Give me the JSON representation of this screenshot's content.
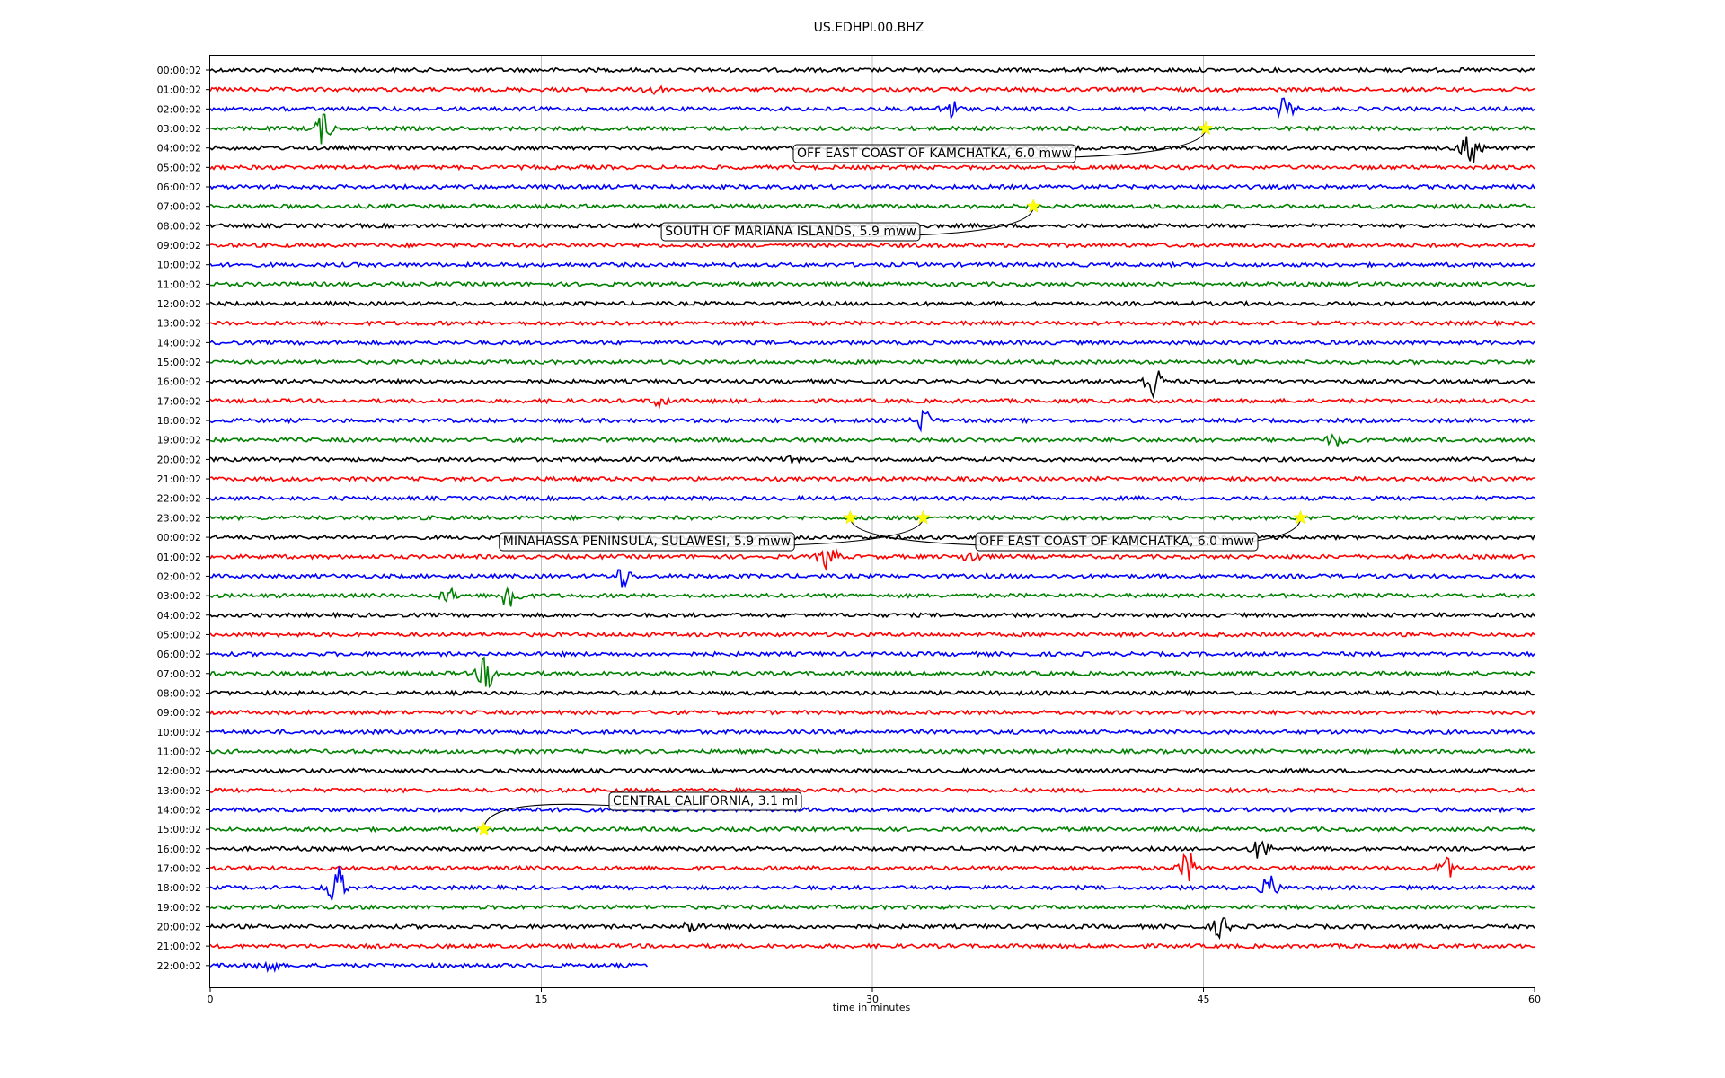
{
  "chart_data": {
    "type": "line",
    "title": "US.EDHPI.00.BHZ",
    "xlabel": "time in minutes",
    "ylabel": "",
    "xlim": [
      0,
      60
    ],
    "grid": true,
    "x_ticks": [
      "0",
      "15",
      "30",
      "45",
      "60"
    ],
    "trace_colors": [
      "#000000",
      "#ff0000",
      "#0000ff",
      "#008000"
    ],
    "row_labels": [
      "00:00:02",
      "01:00:02",
      "02:00:02",
      "03:00:02",
      "04:00:02",
      "05:00:02",
      "06:00:02",
      "07:00:02",
      "08:00:02",
      "09:00:02",
      "10:00:02",
      "11:00:02",
      "12:00:02",
      "13:00:02",
      "14:00:02",
      "15:00:02",
      "16:00:02",
      "17:00:02",
      "18:00:02",
      "19:00:02",
      "20:00:02",
      "21:00:02",
      "22:00:02",
      "23:00:02",
      "00:00:02",
      "01:00:02",
      "02:00:02",
      "03:00:02",
      "04:00:02",
      "05:00:02",
      "06:00:02",
      "07:00:02",
      "08:00:02",
      "09:00:02",
      "10:00:02",
      "11:00:02",
      "12:00:02",
      "13:00:02",
      "14:00:02",
      "15:00:02",
      "16:00:02",
      "17:00:02",
      "18:00:02",
      "19:00:02",
      "20:00:02",
      "21:00:02",
      "22:00:02"
    ],
    "last_trace_end_minute": 19.8,
    "bursts": [
      {
        "row": 1,
        "t": 20,
        "amp": 0.6
      },
      {
        "row": 2,
        "t": 33.5,
        "amp": 0.9
      },
      {
        "row": 2,
        "t": 48.7,
        "amp": 0.8
      },
      {
        "row": 3,
        "t": 5.1,
        "amp": 1.2
      },
      {
        "row": 4,
        "t": 57.1,
        "amp": 2.0
      },
      {
        "row": 16,
        "t": 42.7,
        "amp": 1.5
      },
      {
        "row": 17,
        "t": 20.4,
        "amp": 0.5
      },
      {
        "row": 18,
        "t": 32.3,
        "amp": 0.9
      },
      {
        "row": 19,
        "t": 51.0,
        "amp": 0.5
      },
      {
        "row": 20,
        "t": 26.5,
        "amp": 0.5
      },
      {
        "row": 25,
        "t": 28.0,
        "amp": 1.0
      },
      {
        "row": 25,
        "t": 34.5,
        "amp": 0.5
      },
      {
        "row": 26,
        "t": 18.7,
        "amp": 0.8
      },
      {
        "row": 27,
        "t": 13.6,
        "amp": 1.5
      },
      {
        "row": 27,
        "t": 10.8,
        "amp": 0.5
      },
      {
        "row": 31,
        "t": 12.5,
        "amp": 1.3
      },
      {
        "row": 40,
        "t": 47.6,
        "amp": 0.8
      },
      {
        "row": 41,
        "t": 44.3,
        "amp": 1.2
      },
      {
        "row": 41,
        "t": 56.0,
        "amp": 0.8
      },
      {
        "row": 42,
        "t": 5.7,
        "amp": 1.8
      },
      {
        "row": 42,
        "t": 48.0,
        "amp": 0.9
      },
      {
        "row": 44,
        "t": 21.8,
        "amp": 0.5
      },
      {
        "row": 44,
        "t": 45.8,
        "amp": 0.8
      },
      {
        "row": 46,
        "t": 2.6,
        "amp": 0.7
      }
    ],
    "events": [
      {
        "label": "OFF EAST COAST OF KAMCHATKA, 6.0 mww",
        "row": 3,
        "t": 45.1
      },
      {
        "label": "SOUTH OF MARIANA ISLANDS, 5.9 mww",
        "row": 7,
        "t": 37.3
      },
      {
        "label": "MINAHASSA PENINSULA, SULAWESI, 5.9 mww",
        "row": 23,
        "t": 32.3
      },
      {
        "label": "OFF EAST COAST OF KAMCHATKA, 6.0 mww",
        "row": 23,
        "t": 29.0
      },
      {
        "label": "",
        "row": 23,
        "t": 49.4
      },
      {
        "label": "CENTRAL CALIFORNIA, 3.1 ml",
        "row": 39,
        "t": 12.4
      }
    ]
  }
}
